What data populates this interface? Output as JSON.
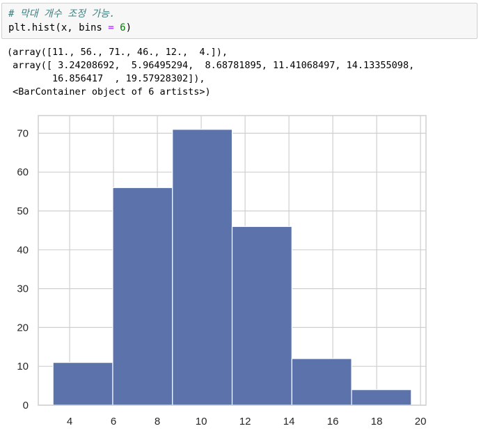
{
  "input_cell": {
    "comment": "# 막대 개수 조정 가능.",
    "code_prefix": "plt.hist(x, bins ",
    "code_op": "=",
    "code_space": " ",
    "code_num": "6",
    "code_suffix": ")"
  },
  "output_cell": {
    "lines": [
      "(array([11., 56., 71., 46., 12.,  4.]),",
      " array([ 3.24208692,  5.96495294,  8.68781895, 11.41068497, 14.13355098,",
      "        16.856417  , 19.57928302]),",
      " <BarContainer object of 6 artists>)"
    ]
  },
  "colors": {
    "bar_fill": "#5b72ab",
    "bar_edge": "#ffffff",
    "grid": "#cfcfcf",
    "tick_text": "#262626"
  },
  "chart_data": {
    "type": "bar",
    "bin_edges": [
      3.24208692,
      5.96495294,
      8.68781895,
      11.41068497,
      14.13355098,
      16.856417,
      19.57928302
    ],
    "values": [
      11,
      56,
      71,
      46,
      12,
      4
    ],
    "title": "",
    "xlabel": "",
    "ylabel": "",
    "xlim": [
      2.57,
      20.25
    ],
    "ylim": [
      0,
      74.55
    ],
    "xticks": [
      4,
      6,
      8,
      10,
      12,
      14,
      16,
      18,
      20
    ],
    "yticks": [
      0,
      10,
      20,
      30,
      40,
      50,
      60,
      70
    ],
    "grid": true
  }
}
